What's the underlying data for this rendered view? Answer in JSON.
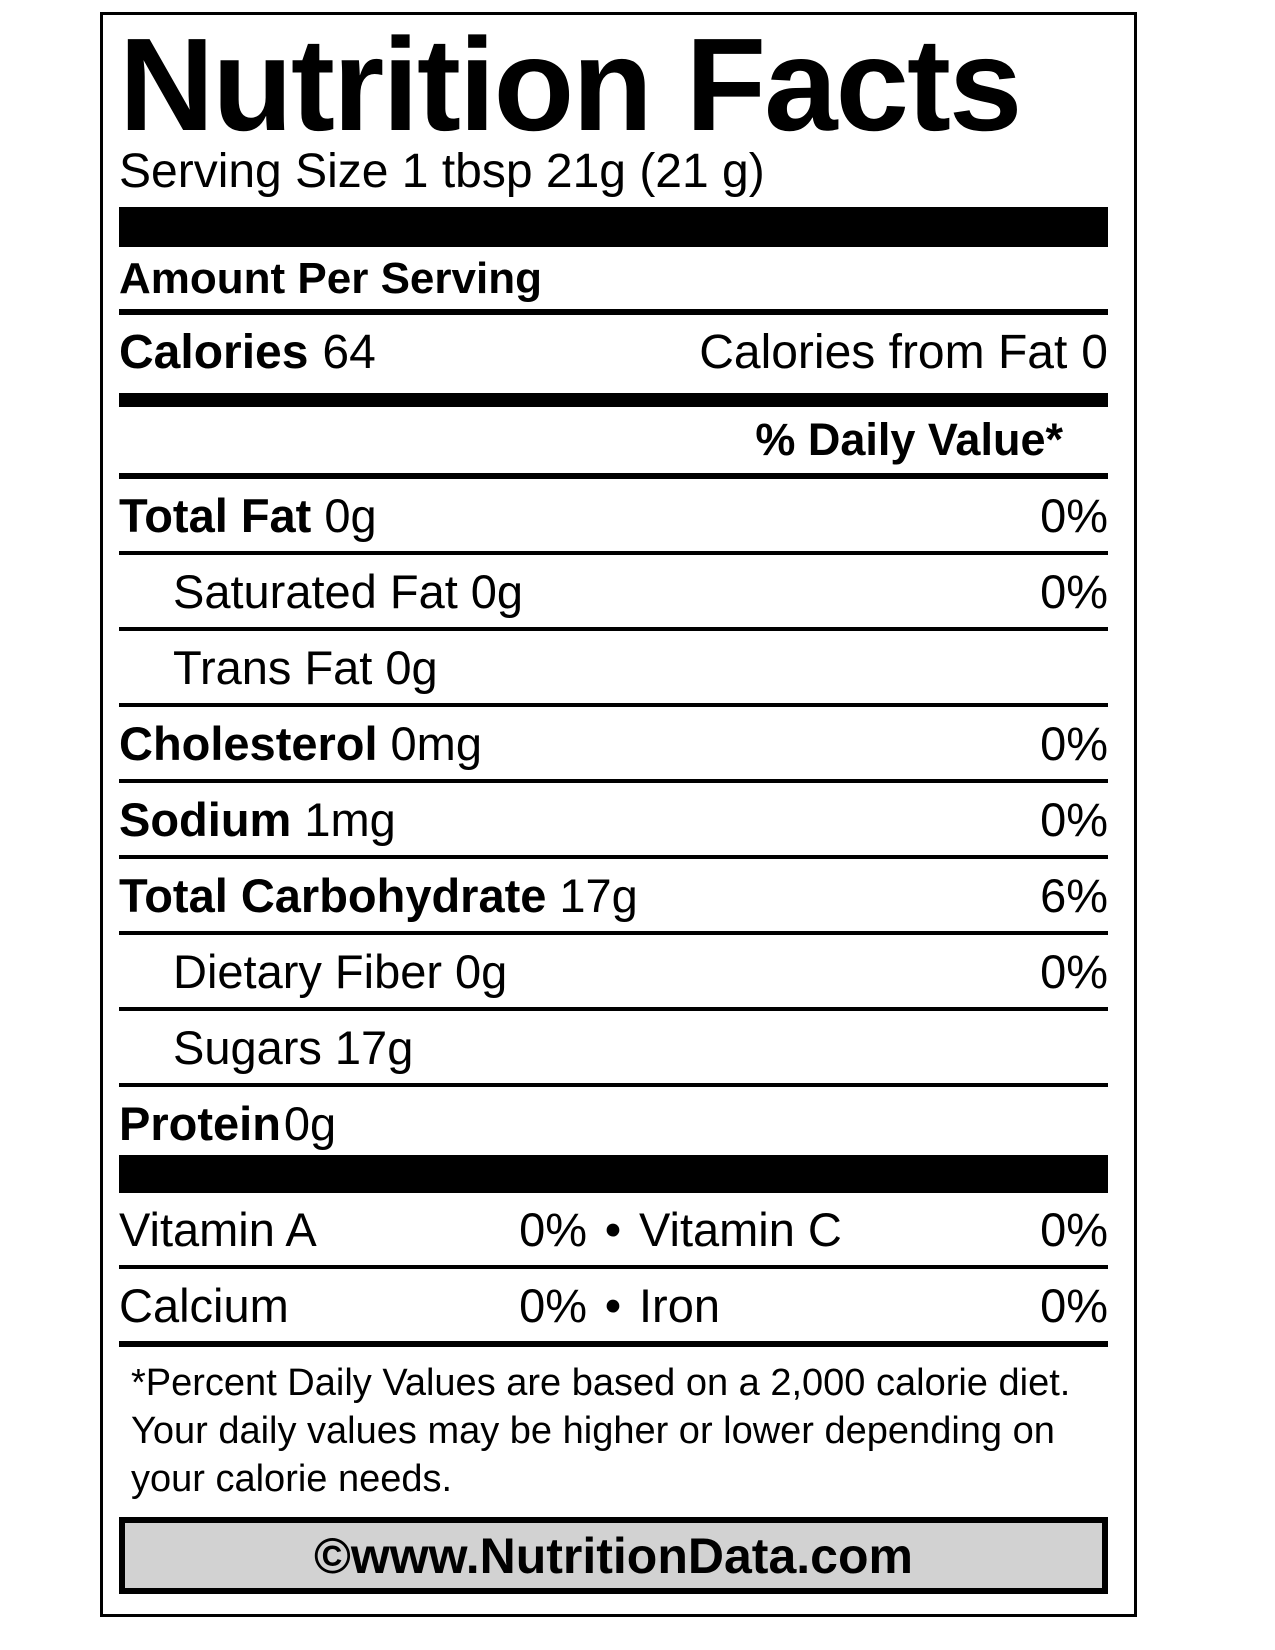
{
  "title": "Nutrition Facts",
  "serving_size": "Serving Size 1 tbsp 21g (21 g)",
  "amount_per_serving": "Amount Per Serving",
  "calories": {
    "label": "Calories",
    "value": "64",
    "from_fat_label": "Calories from Fat",
    "from_fat_value": "0"
  },
  "daily_value_header": "% Daily Value*",
  "bullet": "•",
  "nutrients": [
    {
      "name": "Total Fat",
      "amount": "0g",
      "dv": "0%"
    },
    {
      "name": "Saturated Fat",
      "amount": "0g",
      "dv": "0%"
    },
    {
      "name": "Trans Fat",
      "amount": "0g",
      "dv": ""
    },
    {
      "name": "Cholesterol",
      "amount": "0mg",
      "dv": "0%"
    },
    {
      "name": "Sodium",
      "amount": "1mg",
      "dv": "0%"
    },
    {
      "name": "Total Carbohydrate",
      "amount": "17g",
      "dv": "6%"
    },
    {
      "name": "Dietary Fiber",
      "amount": "0g",
      "dv": "0%"
    },
    {
      "name": "Sugars",
      "amount": "17g",
      "dv": ""
    },
    {
      "name": "Protein",
      "amount": "0g",
      "dv": ""
    }
  ],
  "vitamins": [
    {
      "name": "Vitamin A",
      "dv": "0%"
    },
    {
      "name": "Vitamin C",
      "dv": "0%"
    },
    {
      "name": "Calcium",
      "dv": "0%"
    },
    {
      "name": "Iron",
      "dv": "0%"
    }
  ],
  "footnote_lines": [
    "*Percent Daily Values are based on a 2,000 calorie diet.",
    "Your daily values may be higher or lower depending on",
    "your calorie needs."
  ],
  "source": "©www.NutritionData.com",
  "colors": {
    "text": "#000000",
    "background": "#ffffff",
    "source_box_fill": "#d2d2d2"
  }
}
